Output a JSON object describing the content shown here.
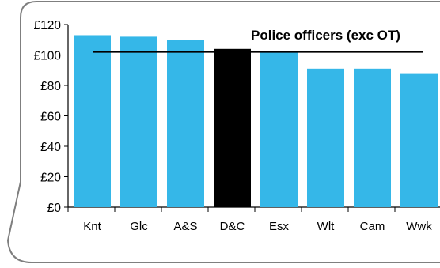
{
  "chart_data": {
    "type": "bar",
    "title": "Police officers (exc OT)",
    "xlabel": "",
    "ylabel": "",
    "categories": [
      "Knt",
      "Glc",
      "A&S",
      "D&C",
      "Esx",
      "Wlt",
      "Cam",
      "Wwk"
    ],
    "values": [
      113,
      112,
      110,
      104,
      102,
      91,
      91,
      88
    ],
    "highlight_category": "D&C",
    "reference_line": 102,
    "ylim": [
      0,
      120
    ],
    "y_ticks": [
      0,
      20,
      40,
      60,
      80,
      100,
      120
    ],
    "y_tick_labels": [
      "£0",
      "£20",
      "£40",
      "£60",
      "£80",
      "£100",
      "£120"
    ],
    "grid": false,
    "legend": "none"
  },
  "colors": {
    "bar": "#35b7e8",
    "highlight": "#000000",
    "reference_line": "#000000",
    "frame": "#7f7f7f",
    "text": "#000000"
  }
}
